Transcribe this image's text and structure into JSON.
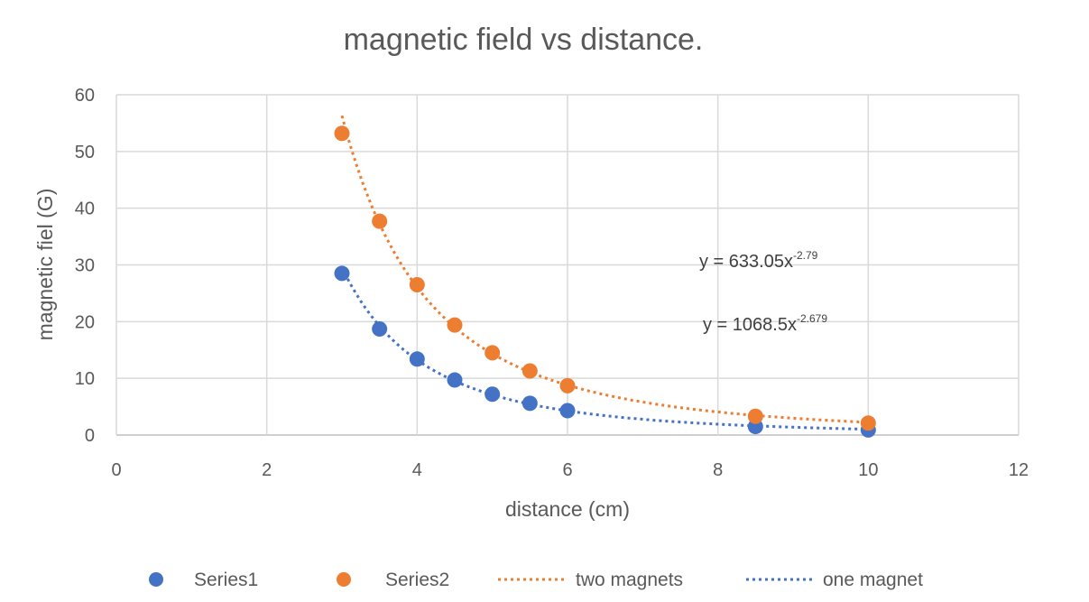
{
  "chart_data": {
    "type": "scatter",
    "title": "magnetic field vs distance.",
    "xlabel": "distance (cm)",
    "ylabel": "magnetic fiel (G)",
    "xlim": [
      0,
      12
    ],
    "ylim": [
      0,
      60
    ],
    "x_ticks": [
      0,
      2,
      4,
      6,
      8,
      10,
      12
    ],
    "y_ticks": [
      0,
      10,
      20,
      30,
      40,
      50,
      60
    ],
    "grid": true,
    "legend_position": "bottom",
    "series": [
      {
        "name": "Series1",
        "color": "#4472C4",
        "x": [
          3,
          3.5,
          4,
          4.5,
          5,
          5.5,
          6,
          8.5,
          10
        ],
        "y": [
          28.5,
          18.7,
          13.4,
          9.7,
          7.2,
          5.6,
          4.3,
          1.5,
          0.9
        ]
      },
      {
        "name": "Series2",
        "color": "#ED7D31",
        "x": [
          3,
          3.5,
          4,
          4.5,
          5,
          5.5,
          6,
          8.5,
          10
        ],
        "y": [
          53.2,
          37.7,
          26.5,
          19.4,
          14.5,
          11.3,
          8.7,
          3.3,
          2.1
        ]
      }
    ],
    "trendlines": [
      {
        "name": "two magnets",
        "color": "#ED7D31",
        "kind": "power",
        "coefficient": 1068.5,
        "exponent": -2.679,
        "x_range": [
          3,
          10
        ],
        "equation_main": "y = 1068.5x",
        "equation_exp": "-2.679"
      },
      {
        "name": "one magnet",
        "color": "#4472C4",
        "kind": "power",
        "coefficient": 633.05,
        "exponent": -2.79,
        "x_range": [
          3,
          10
        ],
        "equation_main": "y = 633.05x",
        "equation_exp": "-2.79"
      }
    ]
  }
}
